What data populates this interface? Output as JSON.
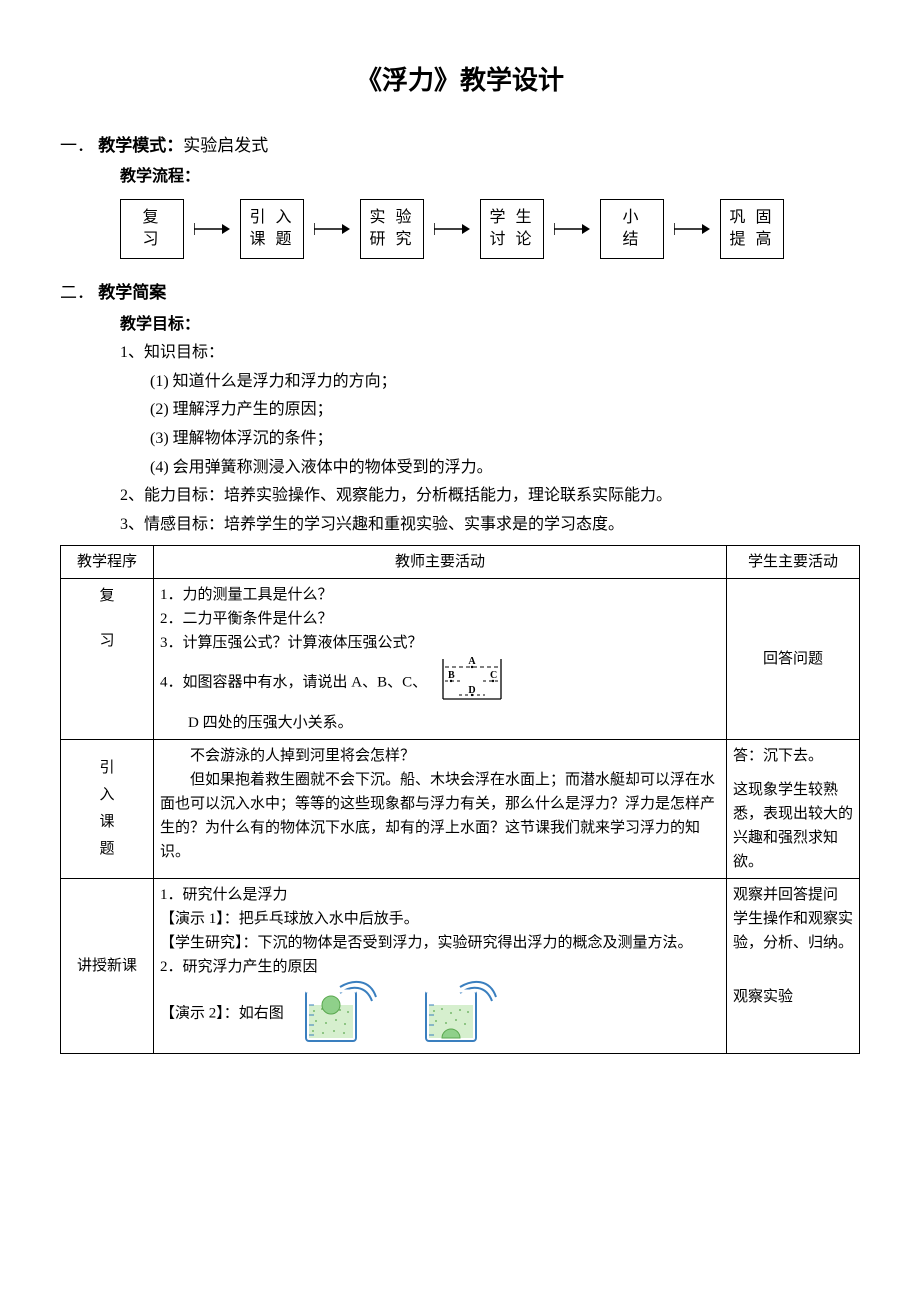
{
  "title": "《浮力》教学设计",
  "section1": {
    "label": "一．",
    "mode_label": "教学模式：",
    "mode_value": "实验启发式",
    "flow_label": "教学流程：",
    "flow_boxes": [
      {
        "l1": "复",
        "l2": "习"
      },
      {
        "l1": "引 入",
        "l2": "课 题"
      },
      {
        "l1": "实 验",
        "l2": "研 究"
      },
      {
        "l1": "学 生",
        "l2": "讨 论"
      },
      {
        "l1": "小",
        "l2": "结"
      },
      {
        "l1": "巩 固",
        "l2": "提 高"
      }
    ]
  },
  "section2": {
    "label": "二．",
    "brief_label": "教学简案",
    "goals_label": "教学目标：",
    "knowledge_label": "1、知识目标：",
    "knowledge_items": [
      "(1)  知道什么是浮力和浮力的方向；",
      "(2)  理解浮力产生的原因；",
      "(3)  理解物体浮沉的条件；",
      "(4)  会用弹簧称测浸入液体中的物体受到的浮力。"
    ],
    "ability_label": "2、能力目标：培养实验操作、观察能力，分析概括能力，理论联系实际能力。",
    "emotion_label": "3、情感目标：培养学生的学习兴趣和重视实验、实事求是的学习态度。"
  },
  "tableHeaders": {
    "c1": "教学程序",
    "c2": "教师主要活动",
    "c3": "学生主要活动"
  },
  "rows": {
    "review": {
      "prog_l1": "复",
      "prog_l2": "习",
      "teacher_1": "1．力的测量工具是什么？",
      "teacher_2": "2．二力平衡条件是什么？",
      "teacher_3": "3．计算压强公式？计算液体压强公式？",
      "teacher_4a": "4．如图容器中有水，请说出 A、B、C、",
      "teacher_4b": "D 四处的压强大小关系。",
      "student": "回答问题",
      "diag_labels": {
        "A": "A",
        "B": "B",
        "C": "C",
        "D": "D"
      }
    },
    "intro": {
      "prog": "引入课题",
      "teacher": "　　不会游泳的人掉到河里将会怎样？\n　　但如果抱着救生圈就不会下沉。船、木块会浮在水面上；而潜水艇却可以浮在水面也可以沉入水中；等等的这些现象都与浮力有关，那么什么是浮力？浮力是怎样产生的？为什么有的物体沉下水底，却有的浮上水面？这节课我们就来学习浮力的知识。",
      "student_1": "答：沉下去。",
      "student_2": "这现象学生较熟悉，表现出较大的兴趣和强烈求知欲。"
    },
    "teach": {
      "prog": "讲授新课",
      "t1": "1．研究什么是浮力",
      "t2": "【演示 1】：把乒乓球放入水中后放手。",
      "t3": "【学生研究】：下沉的物体是否受到浮力，实验研究得出浮力的概念及测量方法。",
      "t4": "2．研究浮力产生的原因",
      "t5": "【演示 2】：如右图",
      "student_1": "观察并回答提问",
      "student_2": "学生操作和观察实验，分析、归纳。",
      "student_3": "观察实验"
    }
  },
  "colors": {
    "text": "#000000",
    "border": "#000000",
    "water_fill": "#d6efce",
    "water_dots": "#5aa84f",
    "ball_fill": "#8fd08a",
    "tube_stroke": "#3a7fbf",
    "bg": "#ffffff"
  }
}
